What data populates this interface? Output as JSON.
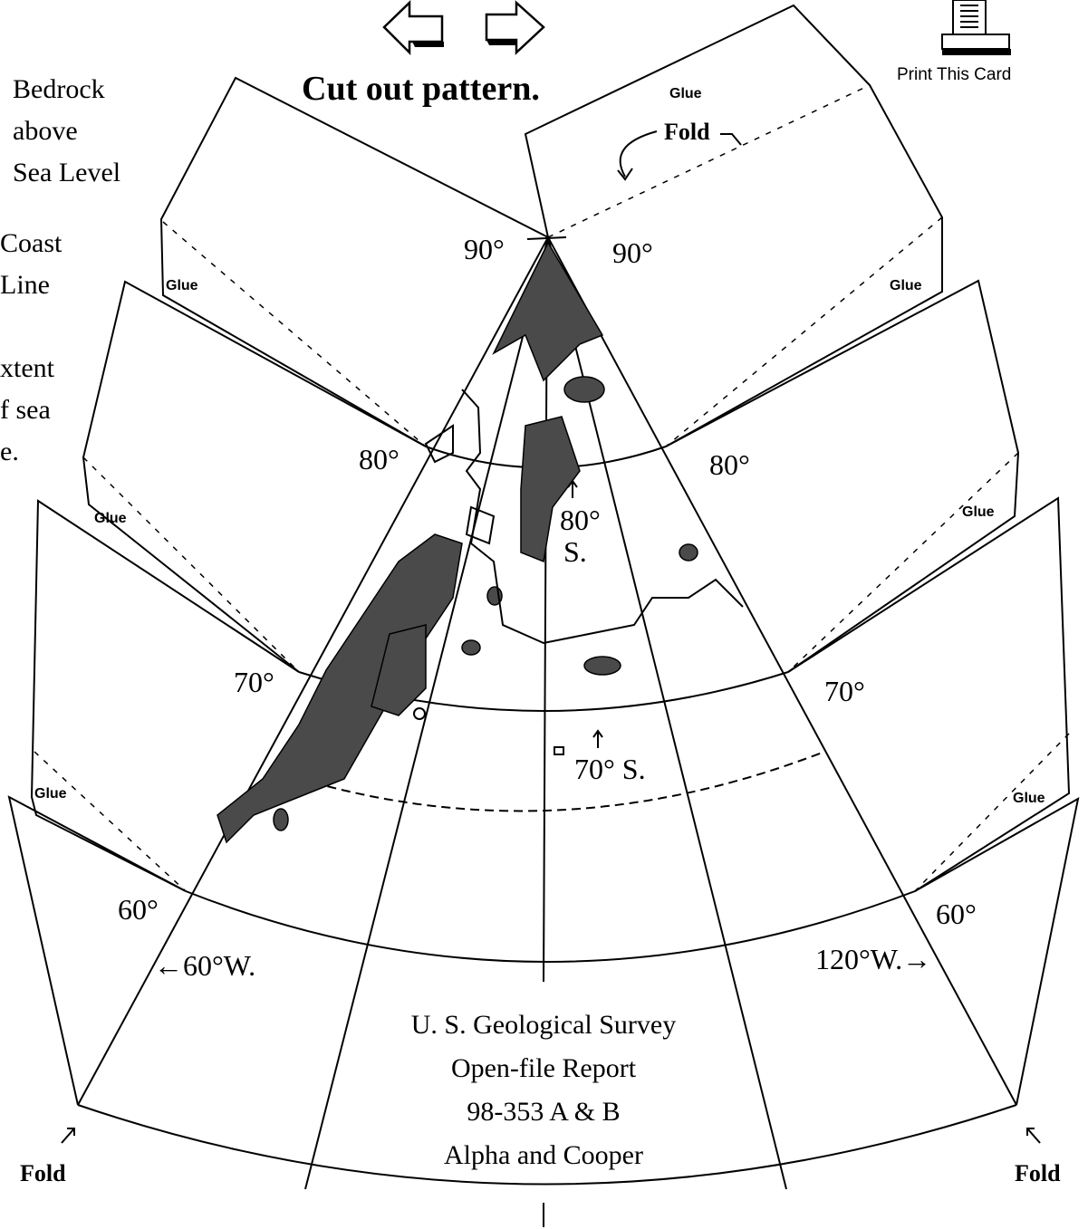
{
  "navigation": {
    "back_icon": "left-arrow-icon",
    "forward_icon": "right-arrow-icon"
  },
  "print": {
    "icon": "printer-icon",
    "label": "Print This Card"
  },
  "title": "Cut out pattern.",
  "legend": {
    "bedrock": [
      "Bedrock",
      "above",
      "Sea Level"
    ],
    "coast": [
      "Coast",
      "Line"
    ],
    "extent": [
      "xtent",
      "f sea",
      "e."
    ]
  },
  "labels": {
    "glue": "Glue",
    "fold": "Fold",
    "lat90": "90°",
    "lat80": "80°",
    "lat70": "70°",
    "lat60": "60°",
    "lat80s_a": "80°",
    "lat80s_b": "S.",
    "lat70s": "70° S.",
    "lon60w": "←60°W.",
    "lon120w": "120°W.→"
  },
  "credit": [
    "U. S. Geological Survey",
    "Open-file Report",
    "98-353 A & B",
    "Alpha and Cooper"
  ]
}
